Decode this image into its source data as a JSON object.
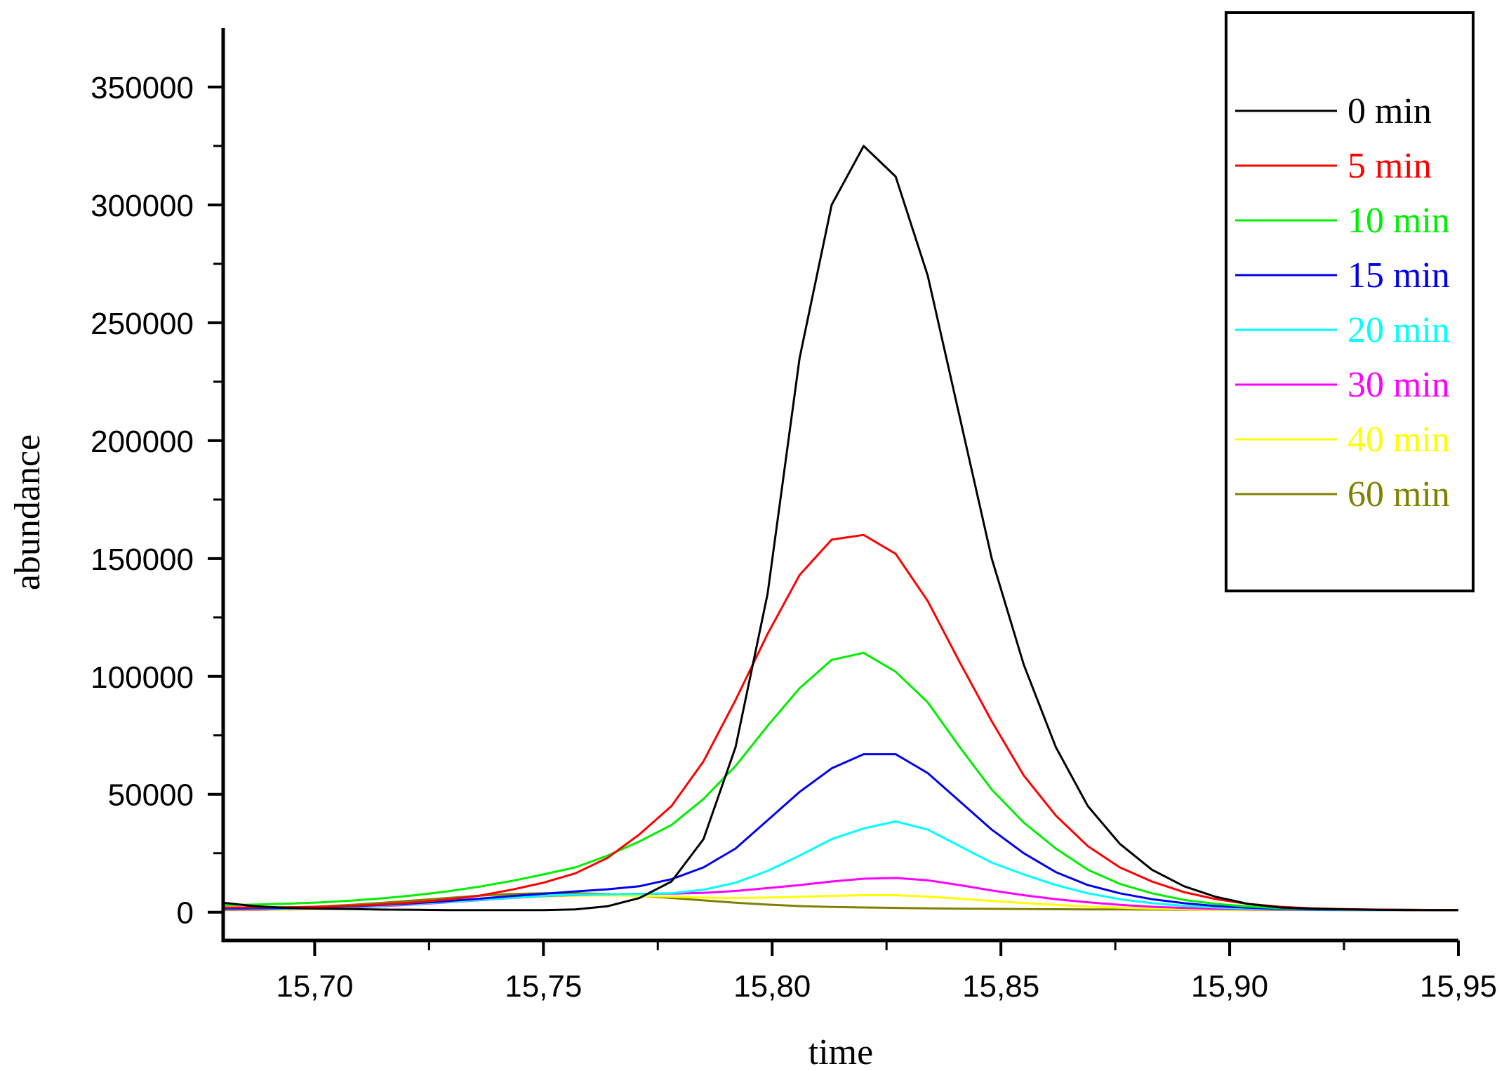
{
  "chart_data": {
    "type": "line",
    "title": "",
    "xlabel": "time",
    "ylabel": "abundance",
    "xlim": [
      15.68,
      15.95
    ],
    "ylim": [
      -12000,
      375000
    ],
    "x_ticks": [
      15.7,
      15.75,
      15.8,
      15.85,
      15.9,
      15.95
    ],
    "x_tick_labels": [
      "15,70",
      "15,75",
      "15,80",
      "15,85",
      "15,90",
      "15,95"
    ],
    "y_ticks": [
      0,
      50000,
      100000,
      150000,
      200000,
      250000,
      300000,
      350000
    ],
    "y_tick_labels": [
      "0",
      "50000",
      "100000",
      "150000",
      "200000",
      "250000",
      "300000",
      "350000"
    ],
    "grid": false,
    "legend_position": "top-right",
    "x": [
      15.68,
      15.687,
      15.694,
      15.701,
      15.708,
      15.715,
      15.722,
      15.729,
      15.736,
      15.743,
      15.75,
      15.757,
      15.764,
      15.771,
      15.778,
      15.785,
      15.792,
      15.799,
      15.806,
      15.813,
      15.82,
      15.827,
      15.834,
      15.841,
      15.848,
      15.855,
      15.862,
      15.869,
      15.876,
      15.883,
      15.89,
      15.897,
      15.904,
      15.911,
      15.918,
      15.925,
      15.932,
      15.939,
      15.946,
      15.95
    ],
    "series": [
      {
        "name": "0 min",
        "color": "#000000",
        "values": [
          4000,
          2500,
          1800,
          1500,
          1300,
          1100,
          1000,
          900,
          900,
          900,
          900,
          1200,
          2500,
          6000,
          13000,
          31000,
          70000,
          135000,
          235000,
          300000,
          325000,
          312000,
          270000,
          210000,
          150000,
          105000,
          70000,
          45000,
          29000,
          18000,
          11000,
          6500,
          3500,
          2000,
          1500,
          1200,
          1000,
          900,
          900,
          900
        ]
      },
      {
        "name": "5 min",
        "color": "#ff0000",
        "values": [
          2000,
          2000,
          2100,
          2300,
          2700,
          3300,
          4200,
          5400,
          7000,
          9500,
          12500,
          16500,
          23000,
          33000,
          45000,
          64000,
          90000,
          118000,
          143000,
          158000,
          160000,
          152000,
          132000,
          106000,
          81000,
          58000,
          41000,
          28000,
          19000,
          13000,
          8500,
          5500,
          3500,
          2300,
          1600,
          1300,
          1100,
          1000,
          900,
          900
        ]
      },
      {
        "name": "10 min",
        "color": "#00ee00",
        "values": [
          3000,
          3200,
          3600,
          4100,
          4900,
          5900,
          7200,
          8800,
          10800,
          13200,
          16000,
          19000,
          24000,
          30000,
          37000,
          48000,
          62000,
          79000,
          95000,
          107000,
          110000,
          102000,
          89000,
          70000,
          52000,
          38000,
          27000,
          18000,
          12000,
          8000,
          5200,
          3500,
          2400,
          1700,
          1400,
          1200,
          1100,
          1000,
          900,
          900
        ]
      },
      {
        "name": "15 min",
        "color": "#0000ee",
        "values": [
          1500,
          1600,
          1800,
          2100,
          2500,
          3100,
          3800,
          4700,
          5700,
          6800,
          7800,
          8800,
          9700,
          11000,
          14000,
          19000,
          27000,
          39000,
          51000,
          61000,
          67000,
          67000,
          59000,
          47000,
          35000,
          25000,
          17000,
          11500,
          8000,
          5500,
          3800,
          2600,
          1900,
          1400,
          1200,
          1100,
          1000,
          950,
          900,
          900
        ]
      },
      {
        "name": "20 min",
        "color": "#00ffff",
        "values": [
          1200,
          1300,
          1500,
          1800,
          2200,
          2800,
          3500,
          4300,
          5200,
          6100,
          6900,
          7400,
          7600,
          7700,
          8000,
          9500,
          12500,
          17500,
          24000,
          31000,
          35500,
          38500,
          35000,
          28000,
          21000,
          16000,
          11500,
          8000,
          5500,
          3800,
          2700,
          2000,
          1500,
          1200,
          1000,
          950,
          900,
          900,
          900,
          900
        ]
      },
      {
        "name": "30 min",
        "color": "#ff00ff",
        "values": [
          1000,
          1100,
          1300,
          1600,
          2000,
          2600,
          3300,
          4200,
          5100,
          6000,
          6800,
          7300,
          7600,
          7800,
          7900,
          8200,
          9000,
          10200,
          11500,
          13000,
          14200,
          14500,
          13500,
          11500,
          9200,
          7200,
          5500,
          4200,
          3100,
          2300,
          1800,
          1400,
          1200,
          1000,
          950,
          900,
          900,
          900,
          900,
          900
        ]
      },
      {
        "name": "40 min",
        "color": "#ffff00",
        "values": [
          800,
          900,
          1100,
          1400,
          1900,
          2600,
          3400,
          4300,
          5200,
          6000,
          6600,
          7000,
          7100,
          6900,
          6600,
          6200,
          6000,
          6200,
          6500,
          6900,
          7200,
          7200,
          6600,
          5700,
          4800,
          3900,
          3100,
          2400,
          1900,
          1500,
          1200,
          1000,
          900,
          900,
          900,
          900,
          900,
          900,
          900,
          900
        ]
      },
      {
        "name": "60 min",
        "color": "#808000",
        "values": [
          1500,
          1600,
          1900,
          2400,
          3100,
          4000,
          5000,
          6000,
          7000,
          7700,
          8000,
          8000,
          7700,
          7000,
          6000,
          5000,
          4000,
          3200,
          2600,
          2200,
          2000,
          1800,
          1600,
          1500,
          1400,
          1300,
          1250,
          1200,
          1150,
          1100,
          1050,
          1000,
          1000,
          950,
          950,
          950,
          900,
          900,
          900,
          900
        ]
      }
    ]
  }
}
